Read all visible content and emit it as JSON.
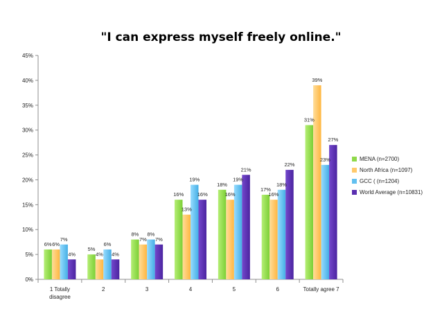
{
  "chart_data": {
    "type": "bar",
    "title": "\"I can express myself freely online.\"",
    "xlabel": "",
    "ylabel": "",
    "categories": [
      "1 Totally disagree",
      "2",
      "3",
      "4",
      "5",
      "6",
      "Totally agree 7"
    ],
    "category_lines": [
      [
        "1 Totally",
        "disagree"
      ],
      [
        "2"
      ],
      [
        "3"
      ],
      [
        "4"
      ],
      [
        "5"
      ],
      [
        "6"
      ],
      [
        "Totally agree 7"
      ]
    ],
    "ylim": [
      0,
      45
    ],
    "yticks": [
      0,
      5,
      10,
      15,
      20,
      25,
      30,
      35,
      40,
      45
    ],
    "ytick_labels": [
      "0%",
      "5%",
      "10%",
      "15%",
      "20%",
      "25%",
      "30%",
      "35%",
      "40%",
      "45%"
    ],
    "grid": false,
    "legend_position": "right",
    "series": [
      {
        "name": "MENA (n=2700)",
        "color": "#8fd94a",
        "values": [
          6,
          5,
          8,
          16,
          18,
          17,
          31
        ]
      },
      {
        "name": "North Africa (n=1097)",
        "color": "#ffc96b",
        "values": [
          6,
          4,
          7,
          13,
          16,
          16,
          39
        ]
      },
      {
        "name": "GCC ( (n=1204)",
        "color": "#62c0f0",
        "values": [
          7,
          6,
          8,
          19,
          19,
          18,
          23
        ]
      },
      {
        "name": "World Average  (n=10831)",
        "color": "#5a2fb0",
        "values": [
          4,
          4,
          7,
          16,
          21,
          22,
          27
        ]
      }
    ]
  }
}
